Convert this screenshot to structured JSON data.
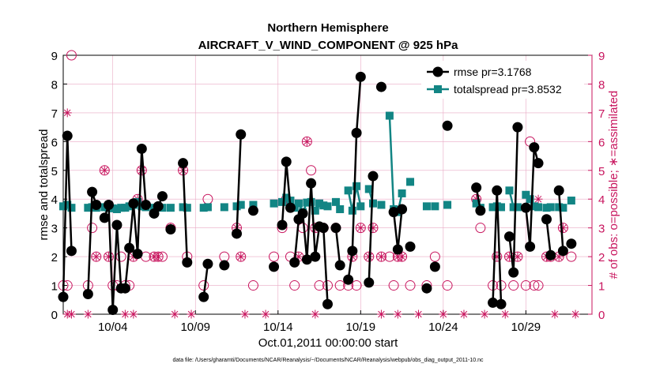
{
  "chart_data": {
    "type": "line",
    "title_line1": "Northern Hemisphere",
    "title_line2": "AIRCRAFT_V_WIND_COMPONENT @ 925 hPa",
    "xlabel": "Oct.01,2011 00:00:00 start",
    "ylabel_left": "rmse and totalspread",
    "ylabel_right": "# of obs: o=possible; ∗=assimilated",
    "footer": "data file: /Users/gharamti/Documents/NCAR/Reanalysis/~/Documents/NCAR/Reanalysis/webpub/obs_diag_output_2011-10.nc",
    "xlim": [
      1,
      33
    ],
    "ylim": [
      0,
      9
    ],
    "x_ticks": [
      {
        "x": 4,
        "label": "10/04"
      },
      {
        "x": 9,
        "label": "10/09"
      },
      {
        "x": 14,
        "label": "10/14"
      },
      {
        "x": 19,
        "label": "10/19"
      },
      {
        "x": 24,
        "label": "10/24"
      },
      {
        "x": 29,
        "label": "10/29"
      }
    ],
    "y_ticks": [
      "0",
      "1",
      "2",
      "3",
      "4",
      "5",
      "6",
      "7",
      "8",
      "9"
    ],
    "right_ticks": [
      "0",
      "1",
      "2",
      "3",
      "4",
      "5",
      "6",
      "7",
      "8",
      "9"
    ],
    "legend": [
      {
        "label": "rmse pr=3.1768",
        "color": "#000000"
      },
      {
        "label": "totalspread pr=3.8532",
        "color": "#128584"
      }
    ],
    "colors": {
      "rmse": "#000000",
      "spread": "#128584",
      "obs": "#c8155e",
      "grid": "#e9a9c4"
    },
    "series": [
      {
        "name": "rmse",
        "segments": [
          [
            [
              1.0,
              0.6
            ],
            [
              1.25,
              6.2
            ],
            [
              1.5,
              2.2
            ]
          ],
          [
            [
              2.5,
              0.7
            ],
            [
              2.75,
              4.25
            ],
            [
              3.0,
              3.8
            ]
          ],
          [
            [
              3.5,
              3.35
            ],
            [
              3.75,
              3.8
            ],
            [
              4.0,
              0.15
            ],
            [
              4.25,
              3.1
            ],
            [
              4.5,
              0.9
            ],
            [
              4.75,
              0.9
            ],
            [
              5.0,
              2.3
            ],
            [
              5.25,
              3.85
            ],
            [
              5.5,
              2.1
            ],
            [
              5.75,
              5.75
            ],
            [
              6.0,
              3.8
            ]
          ],
          [
            [
              6.5,
              3.5
            ],
            [
              6.75,
              3.75
            ],
            [
              7.0,
              4.1
            ]
          ],
          [
            [
              7.5,
              2.95
            ]
          ],
          [
            [
              8.25,
              5.25
            ],
            [
              8.5,
              1.8
            ]
          ],
          [
            [
              9.5,
              0.6
            ],
            [
              9.75,
              1.75
            ]
          ],
          [
            [
              10.75,
              1.7
            ]
          ],
          [
            [
              11.5,
              2.8
            ],
            [
              11.75,
              6.25
            ]
          ],
          [
            [
              12.5,
              3.6
            ]
          ],
          [
            [
              13.75,
              1.65
            ]
          ],
          [
            [
              14.25,
              3.1
            ],
            [
              14.5,
              5.3
            ],
            [
              14.75,
              3.7
            ]
          ],
          [
            [
              15.0,
              1.8
            ],
            [
              15.25,
              3.3
            ],
            [
              15.5,
              3.5
            ],
            [
              15.75,
              1.9
            ],
            [
              16.0,
              4.55
            ],
            [
              16.25,
              2.0
            ],
            [
              16.5,
              3.05
            ],
            [
              16.75,
              3.0
            ],
            [
              17.0,
              0.35
            ]
          ],
          [
            [
              17.5,
              3.0
            ],
            [
              17.75,
              1.7
            ]
          ],
          [
            [
              18.25,
              1.2
            ],
            [
              18.5,
              2.2
            ],
            [
              18.75,
              6.3
            ],
            [
              19.0,
              8.25
            ]
          ],
          [
            [
              19.5,
              1.1
            ],
            [
              19.75,
              4.8
            ]
          ],
          [
            [
              20.25,
              7.9
            ]
          ],
          [
            [
              21.0,
              3.55
            ],
            [
              21.25,
              2.25
            ],
            [
              21.5,
              3.65
            ]
          ],
          [
            [
              22.0,
              2.35
            ]
          ],
          [
            [
              23.0,
              0.9
            ]
          ],
          [
            [
              23.5,
              1.65
            ]
          ],
          [
            [
              24.25,
              6.55
            ]
          ],
          [
            [
              26.0,
              4.4
            ],
            [
              26.25,
              3.6
            ]
          ],
          [
            [
              27.0,
              0.4
            ],
            [
              27.25,
              4.3
            ],
            [
              27.5,
              0.35
            ]
          ],
          [
            [
              28.0,
              2.7
            ],
            [
              28.25,
              1.45
            ],
            [
              28.5,
              6.5
            ]
          ],
          [
            [
              29.0,
              3.7
            ],
            [
              29.25,
              2.35
            ],
            [
              29.5,
              5.8
            ],
            [
              29.75,
              5.25
            ]
          ],
          [
            [
              30.25,
              3.3
            ],
            [
              30.5,
              2.05
            ]
          ],
          [
            [
              31.0,
              4.3
            ],
            [
              31.25,
              2.2
            ]
          ],
          [
            [
              31.75,
              2.45
            ]
          ]
        ]
      },
      {
        "name": "totalspread",
        "segments": [
          [
            [
              1.0,
              3.75
            ],
            [
              1.25,
              3.8
            ],
            [
              1.5,
              3.7
            ]
          ],
          [
            [
              2.5,
              3.7
            ],
            [
              2.75,
              3.72
            ],
            [
              3.0,
              3.7
            ]
          ],
          [
            [
              3.5,
              3.72
            ],
            [
              3.75,
              3.7
            ],
            [
              4.0,
              3.68
            ],
            [
              4.25,
              3.65
            ],
            [
              4.5,
              3.7
            ],
            [
              4.75,
              3.7
            ],
            [
              5.0,
              3.75
            ],
            [
              5.25,
              3.8
            ],
            [
              5.5,
              3.9
            ],
            [
              5.75,
              3.75
            ],
            [
              6.0,
              3.72
            ]
          ],
          [
            [
              6.5,
              3.7
            ],
            [
              6.75,
              3.72
            ],
            [
              7.0,
              3.7
            ]
          ],
          [
            [
              7.5,
              3.7
            ]
          ],
          [
            [
              8.25,
              3.72
            ],
            [
              8.5,
              3.7
            ]
          ],
          [
            [
              9.5,
              3.7
            ],
            [
              9.75,
              3.72
            ]
          ],
          [
            [
              10.75,
              3.72
            ]
          ],
          [
            [
              11.5,
              3.75
            ],
            [
              11.75,
              3.8
            ]
          ],
          [
            [
              12.5,
              3.8
            ]
          ],
          [
            [
              13.75,
              3.85
            ]
          ],
          [
            [
              14.25,
              3.9
            ],
            [
              14.5,
              4.05
            ],
            [
              14.75,
              3.95
            ]
          ],
          [
            [
              15.0,
              3.7
            ],
            [
              15.25,
              3.85
            ],
            [
              15.5,
              3.55
            ],
            [
              15.75,
              3.88
            ],
            [
              16.0,
              3.9
            ],
            [
              16.25,
              3.6
            ],
            [
              16.5,
              3.85
            ],
            [
              16.75,
              3.78
            ],
            [
              17.0,
              3.75
            ]
          ],
          [
            [
              17.5,
              3.9
            ],
            [
              17.75,
              3.65
            ]
          ],
          [
            [
              18.25,
              4.3
            ],
            [
              18.5,
              3.6
            ],
            [
              18.75,
              4.45
            ],
            [
              19.0,
              3.75
            ]
          ],
          [
            [
              19.5,
              4.35
            ],
            [
              19.75,
              3.85
            ]
          ],
          [
            [
              20.25,
              3.8
            ]
          ],
          [
            [
              20.75,
              6.9
            ],
            [
              21.0,
              3.65
            ],
            [
              21.25,
              3.55
            ],
            [
              21.5,
              4.2
            ]
          ],
          [
            [
              22.0,
              4.6
            ]
          ],
          [
            [
              23.0,
              3.75
            ]
          ],
          [
            [
              23.5,
              3.75
            ]
          ],
          [
            [
              24.25,
              3.8
            ]
          ],
          [
            [
              26.0,
              3.85
            ],
            [
              26.25,
              3.7
            ]
          ],
          [
            [
              27.0,
              3.72
            ],
            [
              27.25,
              3.75
            ],
            [
              27.5,
              3.72
            ]
          ],
          [
            [
              28.0,
              4.3
            ],
            [
              28.25,
              3.72
            ],
            [
              28.5,
              3.72
            ]
          ],
          [
            [
              29.0,
              4.15
            ],
            [
              29.25,
              4.0
            ],
            [
              29.5,
              3.75
            ],
            [
              29.75,
              3.72
            ]
          ],
          [
            [
              30.25,
              3.7
            ],
            [
              30.5,
              3.72
            ]
          ],
          [
            [
              31.0,
              3.72
            ],
            [
              31.25,
              3.7
            ]
          ],
          [
            [
              31.75,
              3.95
            ]
          ]
        ]
      }
    ],
    "obs_possible": [
      [
        1.0,
        1
      ],
      [
        1.25,
        1
      ],
      [
        1.5,
        9
      ],
      [
        2.5,
        1
      ],
      [
        2.75,
        3
      ],
      [
        3.0,
        2
      ],
      [
        3.5,
        5
      ],
      [
        3.75,
        2
      ],
      [
        4.0,
        1
      ],
      [
        4.25,
        1
      ],
      [
        4.5,
        2
      ],
      [
        4.75,
        1
      ],
      [
        5.0,
        1
      ],
      [
        5.25,
        2
      ],
      [
        5.5,
        4
      ],
      [
        5.75,
        5
      ],
      [
        6.0,
        2
      ],
      [
        6.5,
        2
      ],
      [
        6.75,
        2
      ],
      [
        7.0,
        2
      ],
      [
        7.5,
        3
      ],
      [
        8.25,
        5
      ],
      [
        8.5,
        2
      ],
      [
        9.5,
        1
      ],
      [
        9.75,
        4
      ],
      [
        10.75,
        2
      ],
      [
        11.5,
        3
      ],
      [
        11.75,
        2
      ],
      [
        12.5,
        1
      ],
      [
        13.75,
        2
      ],
      [
        14.25,
        3
      ],
      [
        14.5,
        4
      ],
      [
        14.75,
        2
      ],
      [
        15.0,
        1
      ],
      [
        15.25,
        2
      ],
      [
        15.5,
        3
      ],
      [
        15.75,
        6
      ],
      [
        16.0,
        5
      ],
      [
        16.25,
        3
      ],
      [
        16.5,
        1
      ],
      [
        16.75,
        3
      ],
      [
        17.0,
        1
      ],
      [
        17.5,
        3
      ],
      [
        17.75,
        1
      ],
      [
        18.25,
        1
      ],
      [
        18.5,
        2
      ],
      [
        18.75,
        1
      ],
      [
        19.0,
        3
      ],
      [
        19.5,
        2
      ],
      [
        19.75,
        3
      ],
      [
        20.25,
        2
      ],
      [
        20.75,
        2
      ],
      [
        21.0,
        1
      ],
      [
        21.25,
        2
      ],
      [
        21.5,
        2
      ],
      [
        22.0,
        1
      ],
      [
        23.0,
        1
      ],
      [
        23.5,
        2
      ],
      [
        24.25,
        1
      ],
      [
        26.0,
        4
      ],
      [
        26.25,
        3
      ],
      [
        27.0,
        1
      ],
      [
        27.25,
        2
      ],
      [
        27.5,
        1
      ],
      [
        28.0,
        2
      ],
      [
        28.25,
        1
      ],
      [
        28.5,
        2
      ],
      [
        29.0,
        1
      ],
      [
        29.25,
        6
      ],
      [
        29.5,
        1
      ],
      [
        29.75,
        1
      ],
      [
        30.25,
        2
      ],
      [
        30.5,
        2
      ],
      [
        31.0,
        2
      ],
      [
        31.25,
        3
      ],
      [
        31.75,
        2
      ]
    ],
    "obs_assimilated": [
      [
        1.25,
        7
      ],
      [
        3.0,
        2
      ],
      [
        3.5,
        5
      ],
      [
        3.75,
        2
      ],
      [
        5.25,
        2
      ],
      [
        5.5,
        4
      ],
      [
        5.75,
        5
      ],
      [
        6.5,
        2
      ],
      [
        6.75,
        2
      ],
      [
        7.5,
        3
      ],
      [
        8.25,
        5
      ],
      [
        11.5,
        3
      ],
      [
        11.75,
        2
      ],
      [
        14.5,
        4
      ],
      [
        15.25,
        2
      ],
      [
        15.75,
        6
      ],
      [
        16.25,
        3
      ],
      [
        16.75,
        3
      ],
      [
        17.5,
        3
      ],
      [
        18.5,
        2
      ],
      [
        19.0,
        3
      ],
      [
        19.5,
        2
      ],
      [
        19.75,
        3
      ],
      [
        20.25,
        2
      ],
      [
        21.25,
        2
      ],
      [
        21.5,
        2
      ],
      [
        26.0,
        4
      ],
      [
        27.25,
        2
      ],
      [
        28.0,
        2
      ],
      [
        28.5,
        2
      ],
      [
        29.75,
        4
      ],
      [
        30.25,
        2
      ],
      [
        30.5,
        2
      ],
      [
        31.0,
        2
      ],
      [
        31.25,
        3
      ]
    ],
    "obs_assimilated_zero_x": [
      1.25,
      1.5,
      2.5,
      4.75,
      5.25,
      7.75,
      8.75,
      12.0,
      13.25,
      16.25,
      20.25,
      21.25,
      22.5,
      24.0,
      25.25,
      26.5,
      27.75,
      30.75,
      32.0
    ]
  }
}
